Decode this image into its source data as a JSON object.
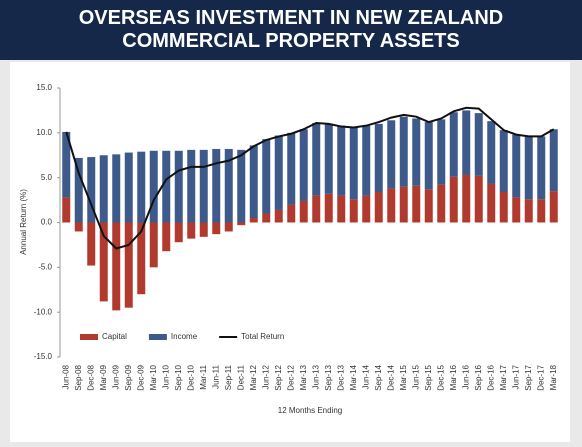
{
  "chart_data": {
    "type": "bar",
    "title": "OVERSEAS INVESTMENT IN NEW ZEALAND COMMERCIAL PROPERTY ASSETS",
    "y_label": "Annual Return (%)",
    "x_label": "12 Months Ending",
    "categories": [
      "Jun-08",
      "Sep-08",
      "Dec-08",
      "Mar-09",
      "Jun-09",
      "Sep-09",
      "Dec-09",
      "Mar-10",
      "Jun-10",
      "Sep-10",
      "Dec-10",
      "Mar-11",
      "Jun-11",
      "Sep-11",
      "Dec-11",
      "Mar-12",
      "Jun-12",
      "Sep-12",
      "Dec-12",
      "Mar-13",
      "Jun-13",
      "Sep-13",
      "Dec-13",
      "Mar-14",
      "Jun-14",
      "Sep-14",
      "Dec-14",
      "Mar-15",
      "Jun-15",
      "Sep-15",
      "Dec-15",
      "Mar-16",
      "Jun-16",
      "Sep-16",
      "Dec-16",
      "Mar-17",
      "Jun-17",
      "Sep-17",
      "Dec-17",
      "Mar-18"
    ],
    "series": [
      {
        "name": "Capital",
        "color": "#b03a2e",
        "values": [
          2.8,
          -1.0,
          -4.8,
          -8.8,
          -9.8,
          -9.5,
          -8.0,
          -5.0,
          -3.2,
          -2.2,
          -1.8,
          -1.6,
          -1.3,
          -1.0,
          -0.3,
          0.5,
          1.0,
          1.4,
          2.0,
          2.4,
          3.0,
          3.2,
          3.0,
          2.6,
          3.0,
          3.4,
          3.8,
          4.0,
          4.1,
          3.7,
          4.2,
          5.1,
          5.3,
          5.2,
          4.3,
          3.4,
          2.8,
          2.6,
          2.6,
          3.5
        ]
      },
      {
        "name": "Income",
        "color": "#3d5a8a",
        "values": [
          7.3,
          7.2,
          7.3,
          7.5,
          7.6,
          7.8,
          7.9,
          8.0,
          8.0,
          8.0,
          8.1,
          8.1,
          8.2,
          8.2,
          8.1,
          8.1,
          8.3,
          8.3,
          8.0,
          8.0,
          8.1,
          7.8,
          7.8,
          8.0,
          7.8,
          7.6,
          7.6,
          7.8,
          7.5,
          7.5,
          7.3,
          7.2,
          7.2,
          7.0,
          7.0,
          6.9,
          7.0,
          7.0,
          7.0,
          6.9
        ]
      },
      {
        "name": "Total Return",
        "color": "#111111",
        "type": "line",
        "values": [
          10.1,
          5.5,
          2.0,
          -1.5,
          -2.9,
          -2.5,
          -1.0,
          2.5,
          4.8,
          5.8,
          6.2,
          6.2,
          6.6,
          6.9,
          7.5,
          8.5,
          9.2,
          9.6,
          9.9,
          10.4,
          11.1,
          11.0,
          10.7,
          10.6,
          10.8,
          11.2,
          11.7,
          12.0,
          11.8,
          11.2,
          11.6,
          12.4,
          12.8,
          12.7,
          11.5,
          10.3,
          9.8,
          9.6,
          9.6,
          10.4
        ]
      }
    ],
    "ylim": [
      -15,
      15
    ],
    "yticks": [
      {
        "value": -15,
        "label": "-15.0"
      },
      {
        "value": -10,
        "label": "-10.0"
      },
      {
        "value": -5,
        "label": "-5.0"
      },
      {
        "value": 0,
        "label": "0.0"
      },
      {
        "value": 5,
        "label": "5.0"
      },
      {
        "value": 10,
        "label": "10.0"
      },
      {
        "value": 15,
        "label": "15.0"
      }
    ],
    "grid": false,
    "legend": "bottom-left"
  }
}
